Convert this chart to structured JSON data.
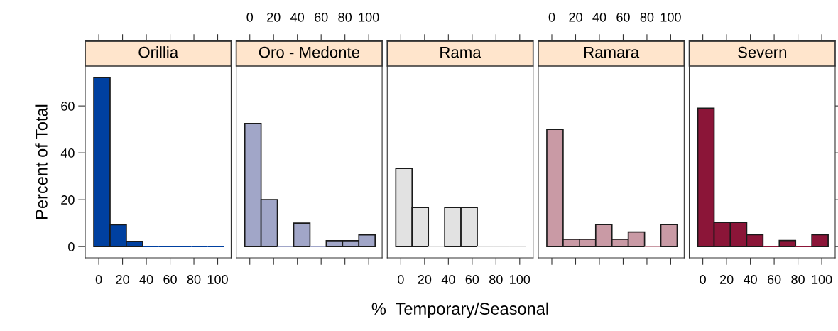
{
  "chart_data": [
    {
      "type": "histogram",
      "title": "Orillia",
      "ylabel": "Percent of Total",
      "color": "#0040a0",
      "bins": [
        -4.2,
        9.5,
        23.2,
        36.9,
        50.6,
        64.3,
        78.0,
        91.7,
        105.4
      ],
      "values": [
        72.1,
        9.3,
        2.2,
        0,
        0,
        0,
        0,
        0
      ],
      "xlim": [
        -11.4,
        111.3
      ],
      "xticks": [
        0,
        20,
        40,
        60,
        80,
        100
      ],
      "ylim": [
        -4.8,
        77
      ],
      "yticks": [
        0,
        20,
        40,
        60
      ]
    },
    {
      "type": "histogram",
      "title": "Oro - Medonte",
      "color": "#a1a6c8",
      "bins": [
        -4.2,
        9.5,
        23.2,
        36.9,
        50.6,
        64.3,
        78.0,
        91.7,
        105.4
      ],
      "values": [
        52.5,
        20,
        0,
        10,
        0,
        2.5,
        2.5,
        5
      ],
      "xlim": [
        -11.4,
        111.3
      ],
      "xticks": [
        0,
        20,
        40,
        60,
        80,
        100
      ],
      "ylim": [
        -4.8,
        77
      ],
      "tick_labels": "x"
    },
    {
      "type": "histogram",
      "title": "Rama",
      "xlabel": "%  Temporary/Seasonal",
      "color": "#e2e2e2",
      "bins": [
        -4.2,
        9.5,
        23.2,
        36.9,
        50.6,
        64.3,
        78.0,
        91.7,
        105.4
      ],
      "values": [
        33.3,
        16.7,
        0,
        16.7,
        16.7,
        0,
        0,
        0
      ],
      "xlim": [
        -11.4,
        111.3
      ],
      "xticks": [
        0,
        20,
        40,
        60,
        80,
        100
      ],
      "ylim": [
        -4.8,
        77
      ],
      "tick_labels": "x"
    },
    {
      "type": "histogram",
      "title": "Ramara",
      "color": "#c99aa5",
      "bins": [
        -4.2,
        9.5,
        23.2,
        36.9,
        50.6,
        64.3,
        78.0,
        91.7,
        105.4
      ],
      "values": [
        50,
        3.1,
        3.1,
        9.4,
        3.1,
        6.2,
        0,
        9.4
      ],
      "xlim": [
        -11.4,
        111.3
      ],
      "xticks": [
        0,
        20,
        40,
        60,
        80,
        100
      ],
      "ylim": [
        -4.8,
        77
      ],
      "tick_labels": "x"
    },
    {
      "type": "histogram",
      "title": "Severn",
      "color": "#8b1538",
      "bins": [
        -4.2,
        9.5,
        23.2,
        36.9,
        50.6,
        64.3,
        78.0,
        91.7,
        105.4
      ],
      "values": [
        59,
        10.3,
        10.3,
        5.1,
        0,
        2.6,
        0,
        5.1
      ],
      "xlim": [
        -11.4,
        111.3
      ],
      "xticks": [
        0,
        20,
        40,
        60,
        80,
        100
      ],
      "ylim": [
        -4.8,
        77
      ],
      "tick_labels": "x"
    }
  ]
}
